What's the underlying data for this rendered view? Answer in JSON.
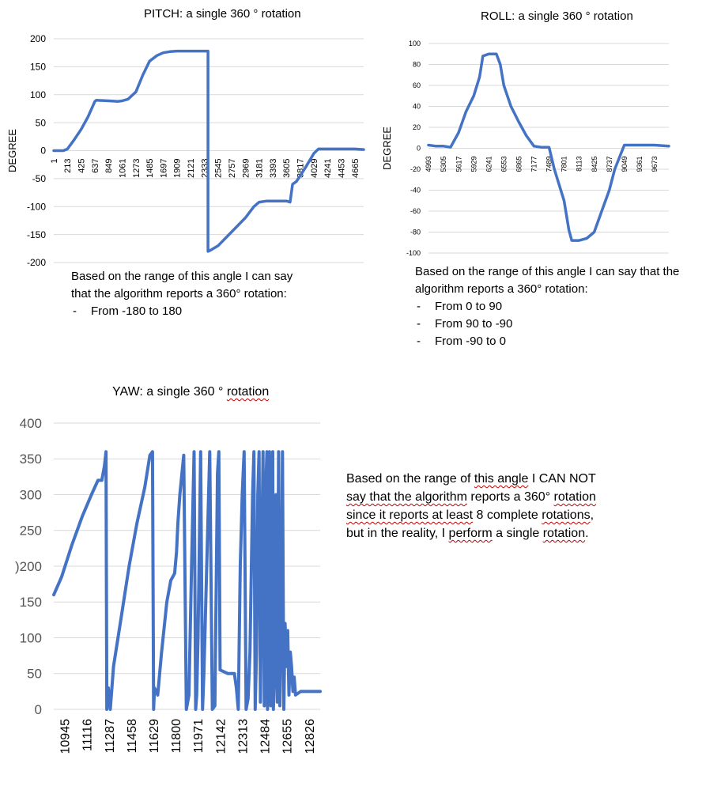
{
  "chart_data": [
    {
      "id": "pitch",
      "type": "line",
      "title": "PITCH: a single 360 ° rotation",
      "ylabel": "DEGREE",
      "xlabel": "",
      "ylim": [
        -200,
        200
      ],
      "xlim": [
        1,
        4800
      ],
      "yticks": [
        200,
        150,
        100,
        50,
        0,
        -50,
        -100,
        -150,
        -200
      ],
      "xticks": [
        "1",
        "213",
        "425",
        "637",
        "849",
        "1061",
        "1273",
        "1485",
        "1697",
        "1909",
        "2121",
        "2333",
        "2545",
        "2757",
        "2969",
        "3181",
        "3393",
        "3605",
        "3817",
        "4029",
        "4241",
        "4453",
        "4665"
      ],
      "grid": true,
      "color": "#4472C4",
      "x": [
        1,
        150,
        213,
        320,
        425,
        530,
        637,
        660,
        849,
        1000,
        1061,
        1150,
        1273,
        1380,
        1485,
        1600,
        1697,
        1800,
        1909,
        2121,
        2333,
        2390,
        2390,
        2430,
        2545,
        2757,
        2969,
        3100,
        3181,
        3300,
        3393,
        3500,
        3605,
        3660,
        3700,
        3760,
        3817,
        3900,
        4029,
        4100,
        4241,
        4453,
        4665,
        4800
      ],
      "y": [
        0,
        0,
        3,
        20,
        38,
        60,
        88,
        90,
        89,
        88,
        89,
        92,
        105,
        135,
        160,
        170,
        175,
        177,
        178,
        178,
        178,
        178,
        -180,
        -178,
        -170,
        -145,
        -120,
        -100,
        -92,
        -90,
        -90,
        -90,
        -90,
        -92,
        -60,
        -55,
        -45,
        -30,
        -5,
        3,
        3,
        3,
        3,
        2
      ],
      "note_lines": [
        "Based on the range of this angle I can say",
        "that the algorithm reports a 360° rotation:"
      ],
      "note_bullets": [
        "From -180 to 180"
      ]
    },
    {
      "id": "roll",
      "type": "line",
      "title": "ROLL: a single 360 ° rotation",
      "ylabel": "DEGREE",
      "xlabel": "",
      "ylim": [
        -100,
        100
      ],
      "xlim": [
        4993,
        9970
      ],
      "yticks": [
        100,
        80,
        60,
        40,
        20,
        0,
        -20,
        -40,
        -60,
        -80,
        -100
      ],
      "xticks": [
        "4993",
        "5305",
        "5617",
        "5929",
        "6241",
        "6553",
        "6865",
        "7177",
        "7489",
        "7801",
        "8113",
        "8425",
        "8737",
        "9049",
        "9361",
        "9673"
      ],
      "grid": true,
      "color": "#4472C4",
      "x": [
        4993,
        5150,
        5305,
        5450,
        5617,
        5770,
        5929,
        6050,
        6120,
        6241,
        6400,
        6480,
        6553,
        6700,
        6865,
        7020,
        7177,
        7330,
        7489,
        7600,
        7801,
        7900,
        7960,
        8113,
        8270,
        8425,
        8580,
        8737,
        8850,
        9049,
        9361,
        9673,
        9970
      ],
      "y": [
        3,
        2,
        2,
        1,
        15,
        35,
        50,
        68,
        88,
        90,
        90,
        80,
        60,
        40,
        25,
        12,
        2,
        1,
        1,
        -20,
        -50,
        -78,
        -88,
        -88,
        -86,
        -80,
        -60,
        -40,
        -20,
        3,
        3,
        3,
        2
      ],
      "note_lines": [
        "Based on the range of this angle I can say that the",
        "algorithm reports a 360° rotation:"
      ],
      "note_bullets": [
        "From 0 to 90",
        "From 90 to -90",
        "From -90 to 0"
      ]
    },
    {
      "id": "yaw",
      "type": "line",
      "title": "YAW: a single 360 ° rotation",
      "title_underlined": "rotation",
      "ylabel": "",
      "xlabel": "",
      "ylim": [
        0,
        400
      ],
      "xlim": [
        10860,
        12910
      ],
      "yticks": [
        400,
        350,
        300,
        250,
        200,
        150,
        100,
        50,
        0
      ],
      "ytick_labels": [
        "400",
        "350",
        "300",
        "250",
        ")200",
        "150",
        "100",
        "50",
        "0"
      ],
      "xticks": [
        "10945",
        "11116",
        "11287",
        "11458",
        "11629",
        "11800",
        "11971",
        "12142",
        "12313",
        "12484",
        "12655",
        "12826"
      ],
      "grid": true,
      "color": "#4472C4",
      "x": [
        10860,
        10920,
        11000,
        11080,
        11150,
        11200,
        11230,
        11250,
        11262,
        11268,
        11280,
        11295,
        11320,
        11380,
        11440,
        11500,
        11560,
        11600,
        11620,
        11628,
        11635,
        11660,
        11690,
        11730,
        11760,
        11790,
        11805,
        11815,
        11830,
        11860,
        11880,
        11900,
        11920,
        11940,
        11952,
        11960,
        11970,
        11990,
        12005,
        12015,
        12030,
        12060,
        12080,
        12100,
        12120,
        12130,
        12140,
        12200,
        12230,
        12250,
        12265,
        12280,
        12295,
        12310,
        12325,
        12340,
        12355,
        12370,
        12390,
        12400,
        12410,
        12420,
        12430,
        12440,
        12450,
        12455,
        12460,
        12470,
        12480,
        12490,
        12500,
        12505,
        12510,
        12520,
        12530,
        12540,
        12545,
        12550,
        12560,
        12570,
        12580,
        12590,
        12600,
        12610,
        12620,
        12630,
        12640,
        12650,
        12660,
        12670,
        12680,
        12690,
        12700,
        12710,
        12720,
        12760,
        12800,
        12850,
        12880,
        12910
      ],
      "y": [
        160,
        185,
        230,
        270,
        300,
        320,
        320,
        340,
        360,
        0,
        30,
        0,
        60,
        130,
        200,
        260,
        310,
        355,
        360,
        0,
        30,
        20,
        80,
        150,
        180,
        190,
        220,
        260,
        300,
        355,
        0,
        20,
        200,
        360,
        0,
        20,
        100,
        360,
        0,
        50,
        150,
        360,
        0,
        5,
        330,
        360,
        55,
        50,
        50,
        50,
        30,
        0,
        200,
        300,
        360,
        0,
        15,
        80,
        300,
        360,
        0,
        80,
        300,
        360,
        10,
        100,
        200,
        360,
        5,
        300,
        360,
        0,
        100,
        360,
        5,
        250,
        360,
        0,
        60,
        300,
        10,
        360,
        5,
        110,
        360,
        0,
        120,
        60,
        110,
        20,
        80,
        60,
        25,
        45,
        20,
        25,
        25,
        25,
        25,
        25
      ],
      "note_segments": [
        {
          "text": "Based on the range of ",
          "u": false
        },
        {
          "text": "this angle",
          "u": true
        },
        {
          "text": " I CAN NOT ",
          "u": false
        },
        {
          "text": "say that the algorithm",
          "u": true
        },
        {
          "text": " reports a 360° ",
          "u": false
        },
        {
          "text": "rotation since it reports at least",
          "u": true
        },
        {
          "text": " 8 complete ",
          "u": false
        },
        {
          "text": "rotations",
          "u": true
        },
        {
          "text": ", but in the reality, I ",
          "u": false
        },
        {
          "text": "perform",
          "u": true
        },
        {
          "text": " a single ",
          "u": false
        },
        {
          "text": "rotation",
          "u": true
        },
        {
          "text": ".",
          "u": false
        }
      ]
    }
  ]
}
